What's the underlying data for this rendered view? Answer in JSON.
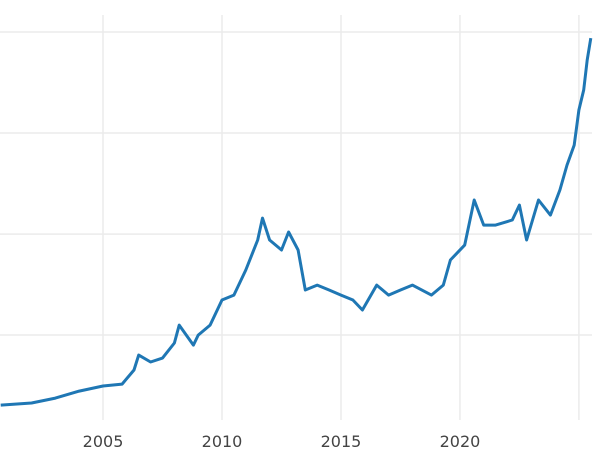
{
  "chart_data": {
    "type": "line",
    "title": "",
    "xlabel": "",
    "ylabel": "",
    "xlim": [
      2000.67,
      2025.55
    ],
    "ylim": [
      146,
      3632
    ],
    "x_ticks": [
      2005,
      2010,
      2015,
      2020,
      2025
    ],
    "x_tick_labels": [
      "2005",
      "2010",
      "2015",
      "2020",
      ""
    ],
    "y_gridlines": [
      851,
      1689,
      2528,
      3366
    ],
    "grid": true,
    "color": "#1f77b4",
    "series": [
      {
        "x": [
          2000.7,
          2002,
          2003,
          2004,
          2005,
          2005.8,
          2006.3,
          2006.5,
          2007,
          2007.5,
          2008,
          2008.2,
          2008.8,
          2009,
          2009.5,
          2010,
          2010.5,
          2011,
          2011.5,
          2011.7,
          2012,
          2012.5,
          2012.8,
          2013.2,
          2013.5,
          2014,
          2014.5,
          2015,
          2015.5,
          2015.9,
          2016.5,
          2017,
          2017.5,
          2018,
          2018.8,
          2019.3,
          2019.6,
          2020.2,
          2020.6,
          2021,
          2021.5,
          2022.2,
          2022.5,
          2022.8,
          2023.3,
          2023.8,
          2024.2,
          2024.5,
          2024.8,
          2025,
          2025.2,
          2025.35,
          2025.5
        ],
        "y": [
          270,
          287,
          328,
          386,
          428,
          444,
          561,
          685,
          627,
          660,
          785,
          934,
          768,
          851,
          934,
          1142,
          1183,
          1391,
          1640,
          1822,
          1640,
          1557,
          1706,
          1557,
          1225,
          1266,
          1225,
          1183,
          1142,
          1059,
          1266,
          1183,
          1225,
          1266,
          1183,
          1266,
          1474,
          1598,
          1972,
          1764,
          1764,
          1806,
          1930,
          1640,
          1972,
          1847,
          2055,
          2262,
          2428,
          2719,
          2885,
          3134,
          3316
        ]
      }
    ]
  }
}
